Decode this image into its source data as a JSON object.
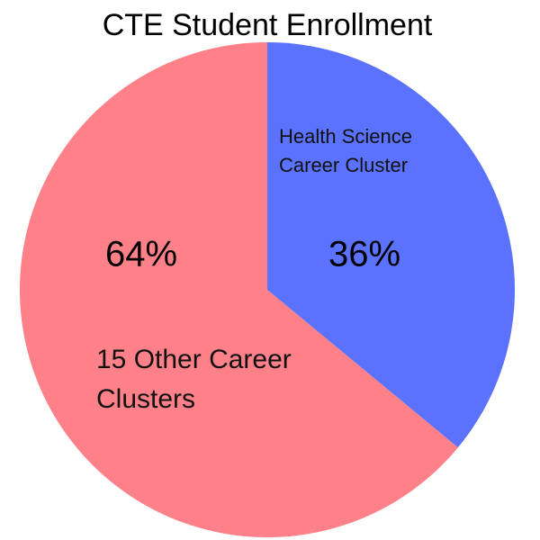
{
  "chart_data": {
    "type": "pie",
    "title": "CTE Student Enrollment",
    "categories": [
      "Health Science Career Cluster",
      "15 Other Career Clusters"
    ],
    "values": [
      36,
      64
    ],
    "value_labels": [
      "36%",
      "64%"
    ],
    "colors": [
      "#5a72fe",
      "#fe8088"
    ]
  }
}
